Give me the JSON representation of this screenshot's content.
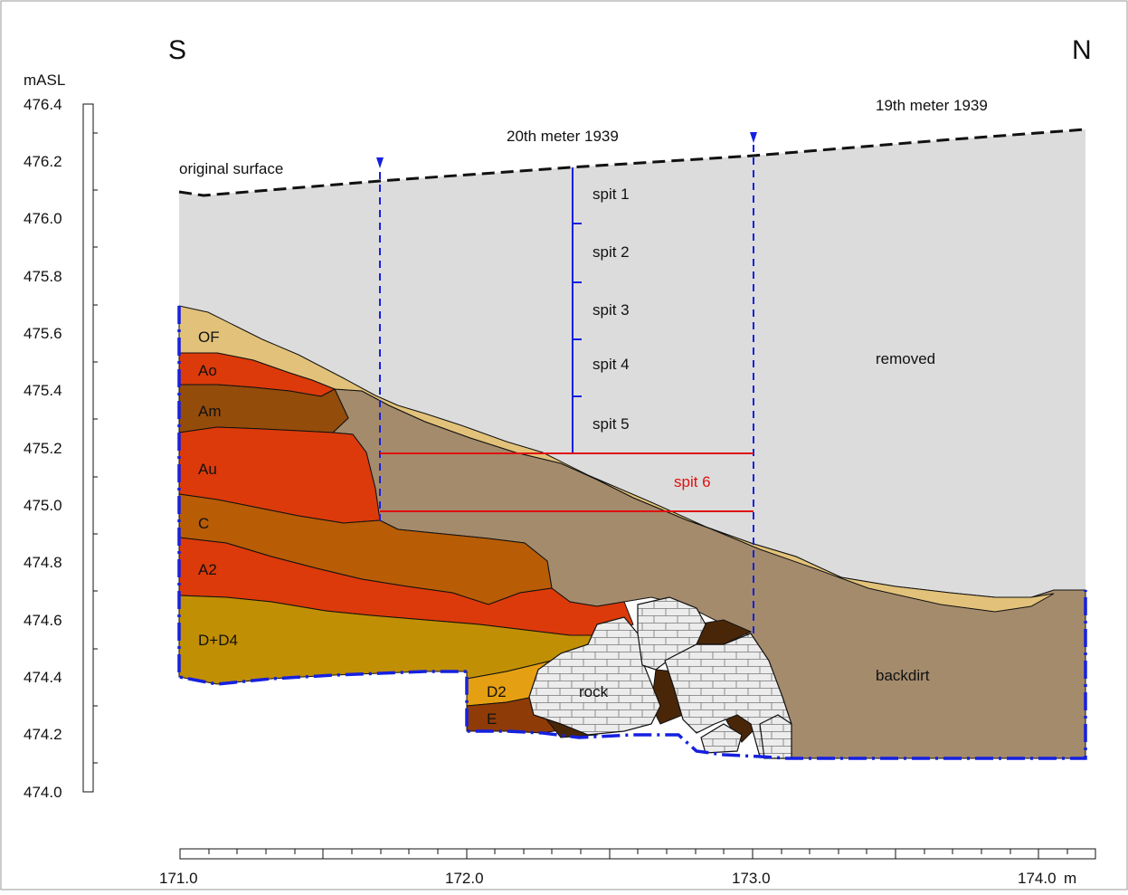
{
  "orientation": {
    "left": "S",
    "right": "N"
  },
  "y_axis": {
    "unit": "mASL",
    "ticks": [
      "476.4",
      "476.2",
      "476.0",
      "475.8",
      "475.6",
      "475.4",
      "475.2",
      "475.0",
      "474.8",
      "474.6",
      "474.4",
      "474.2",
      "474.0"
    ]
  },
  "x_axis": {
    "ticks": [
      "171.0",
      "172.0",
      "173.0",
      "174.0"
    ],
    "unit": "m"
  },
  "annotations": {
    "original_surface": "original surface",
    "meter_20": "20th meter 1939",
    "meter_19": "19th meter 1939",
    "removed": "removed",
    "backdirt": "backdirt",
    "rock": "rock"
  },
  "spits": [
    "spit 1",
    "spit 2",
    "spit 3",
    "spit 4",
    "spit 5"
  ],
  "spit_6": "spit 6",
  "layers": [
    "OF",
    "Ao",
    "Am",
    "Au",
    "C",
    "A2",
    "D+D4",
    "D2",
    "E"
  ],
  "colors": {
    "removed": "#dcdcdc",
    "OF": "#e2c27a",
    "Ao": "#dc3a0a",
    "Am": "#944c0a",
    "Au": "#dc3a0a",
    "C": "#b85c06",
    "A2": "#dc3a0a",
    "D_D4": "#c08f04",
    "D2": "#e59f12",
    "E": "#8e3b08",
    "backdirt": "#a48b6c",
    "rock": "#ececec",
    "dark_fill": "#4a2608",
    "blue_lines": "#1520e0",
    "spit6_lines": "#e01010"
  }
}
